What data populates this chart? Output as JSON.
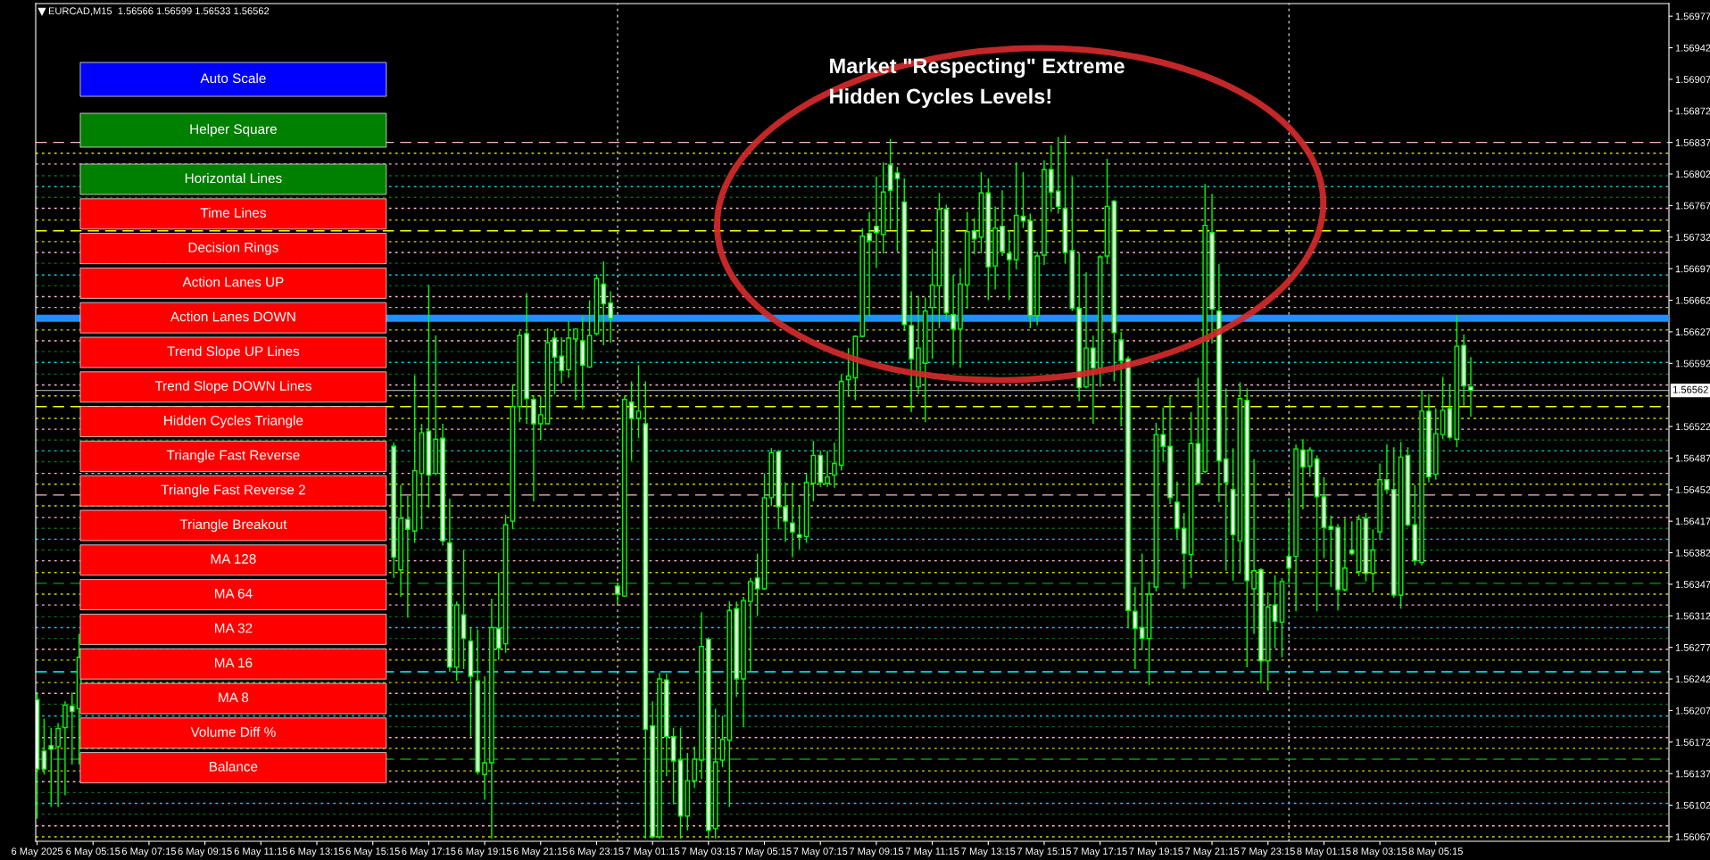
{
  "chart_data": [
    {
      "type": "candlestick",
      "title": "EURCAD,M15  1.56566 1.56599 1.56533 1.56562",
      "annotations": [
        "Market \"Respecting\" Extreme",
        "Hidden Cycles Levels!"
      ],
      "color": "#00ff00",
      "x": [
        "2025-05-06T03:15",
        "2025-05-06T03:30",
        "2025-05-06T03:45",
        "2025-05-06T04:00",
        "2025-05-06T04:15",
        "2025-05-06T04:30",
        "2025-05-06T04:45",
        "2025-05-06T16:00",
        "2025-05-06T16:15",
        "2025-05-06T16:30",
        "2025-05-06T16:45",
        "2025-05-06T17:00",
        "2025-05-06T17:15",
        "2025-05-06T17:30",
        "2025-05-06T17:45",
        "2025-05-06T18:00",
        "2025-05-06T18:15",
        "2025-05-06T18:30",
        "2025-05-06T18:45",
        "2025-05-06T19:00",
        "2025-05-06T19:15",
        "2025-05-06T19:30",
        "2025-05-06T19:45",
        "2025-05-06T20:00",
        "2025-05-06T20:15",
        "2025-05-06T20:30",
        "2025-05-06T20:45",
        "2025-05-06T21:00",
        "2025-05-06T21:15",
        "2025-05-06T21:30",
        "2025-05-06T21:45",
        "2025-05-06T22:00",
        "2025-05-06T22:15",
        "2025-05-06T22:30",
        "2025-05-06T22:45",
        "2025-05-06T23:00",
        "2025-05-06T23:15",
        "2025-05-06T23:30",
        "2025-05-06T23:45",
        "2025-05-07T00:00",
        "2025-05-07T00:15",
        "2025-05-07T00:30",
        "2025-05-07T00:45",
        "2025-05-07T01:00",
        "2025-05-07T01:15",
        "2025-05-07T01:30",
        "2025-05-07T01:45",
        "2025-05-07T02:00",
        "2025-05-07T02:15",
        "2025-05-07T02:30",
        "2025-05-07T02:45",
        "2025-05-07T03:00",
        "2025-05-07T03:15",
        "2025-05-07T03:30",
        "2025-05-07T03:45",
        "2025-05-07T04:00",
        "2025-05-07T04:15",
        "2025-05-07T04:30",
        "2025-05-07T04:45",
        "2025-05-07T05:00",
        "2025-05-07T05:15",
        "2025-05-07T05:30",
        "2025-05-07T05:45",
        "2025-05-07T06:00",
        "2025-05-07T06:15",
        "2025-05-07T06:30",
        "2025-05-07T06:45",
        "2025-05-07T07:00",
        "2025-05-07T07:15",
        "2025-05-07T07:30",
        "2025-05-07T07:45",
        "2025-05-07T08:00",
        "2025-05-07T08:15",
        "2025-05-07T08:30",
        "2025-05-07T08:45",
        "2025-05-07T09:00",
        "2025-05-07T09:15",
        "2025-05-07T09:30",
        "2025-05-07T09:45",
        "2025-05-07T10:00",
        "2025-05-07T10:15",
        "2025-05-07T10:30",
        "2025-05-07T10:45",
        "2025-05-07T11:00",
        "2025-05-07T11:15",
        "2025-05-07T11:30",
        "2025-05-07T11:45",
        "2025-05-07T12:00",
        "2025-05-07T12:15",
        "2025-05-07T12:30",
        "2025-05-07T12:45",
        "2025-05-07T13:00",
        "2025-05-07T13:15",
        "2025-05-07T13:30",
        "2025-05-07T13:45",
        "2025-05-07T14:00",
        "2025-05-07T14:15",
        "2025-05-07T14:30",
        "2025-05-07T14:45",
        "2025-05-07T15:00",
        "2025-05-07T15:15",
        "2025-05-07T15:30",
        "2025-05-07T15:45",
        "2025-05-07T16:00",
        "2025-05-07T16:15",
        "2025-05-07T16:30",
        "2025-05-07T16:45",
        "2025-05-07T17:00",
        "2025-05-07T17:15",
        "2025-05-07T17:30",
        "2025-05-07T17:45",
        "2025-05-07T18:00",
        "2025-05-07T18:15",
        "2025-05-07T18:30",
        "2025-05-07T18:45",
        "2025-05-07T19:00",
        "2025-05-07T19:15",
        "2025-05-07T19:30",
        "2025-05-07T19:45",
        "2025-05-07T20:00",
        "2025-05-07T20:15",
        "2025-05-07T20:30",
        "2025-05-07T20:45",
        "2025-05-07T21:00",
        "2025-05-07T21:15",
        "2025-05-07T21:30",
        "2025-05-07T21:45",
        "2025-05-07T22:00",
        "2025-05-07T22:15",
        "2025-05-07T22:30",
        "2025-05-07T22:45",
        "2025-05-07T23:00",
        "2025-05-07T23:15",
        "2025-05-07T23:30",
        "2025-05-07T23:45",
        "2025-05-08T00:00",
        "2025-05-08T00:15",
        "2025-05-08T00:30",
        "2025-05-08T00:45",
        "2025-05-08T01:00",
        "2025-05-08T01:15",
        "2025-05-08T01:30",
        "2025-05-08T01:45",
        "2025-05-08T02:00",
        "2025-05-08T02:15",
        "2025-05-08T02:30",
        "2025-05-08T02:45",
        "2025-05-08T03:00",
        "2025-05-08T03:15",
        "2025-05-08T03:30",
        "2025-05-08T03:45",
        "2025-05-08T04:00",
        "2025-05-08T04:15",
        "2025-05-08T04:30",
        "2025-05-08T04:45",
        "2025-05-08T05:00",
        "2025-05-08T05:15",
        "2025-05-08T05:30",
        "2025-05-08T05:45",
        "2025-05-08T06:00",
        "2025-05-08T06:15",
        "2025-05-08T06:30"
      ],
      "ohlc": [
        [
          1.56219,
          1.56227,
          1.56087,
          1.56142
        ],
        [
          1.56162,
          1.56198,
          1.56136,
          1.56142
        ],
        [
          1.56168,
          1.56188,
          1.561,
          1.56164
        ],
        [
          1.56167,
          1.56193,
          1.561,
          1.56187
        ],
        [
          1.56188,
          1.56217,
          1.56113,
          1.56213
        ],
        [
          1.56212,
          1.56227,
          1.56147,
          1.56206
        ],
        [
          1.56209,
          1.56292,
          1.56147,
          1.56266
        ],
        [
          1.565,
          1.56504,
          1.56354,
          1.56377
        ],
        [
          1.56363,
          1.56457,
          1.56333,
          1.5642
        ],
        [
          1.56419,
          1.56445,
          1.5631,
          1.56408
        ],
        [
          1.56406,
          1.56579,
          1.56393,
          1.56473
        ],
        [
          1.5647,
          1.56525,
          1.56408,
          1.56515
        ],
        [
          1.56517,
          1.56679,
          1.56432,
          1.56468
        ],
        [
          1.5647,
          1.56623,
          1.56468,
          1.56508
        ],
        [
          1.56509,
          1.56525,
          1.5639,
          1.56395
        ],
        [
          1.56393,
          1.56442,
          1.5625,
          1.56255
        ],
        [
          1.56255,
          1.56328,
          1.5624,
          1.56324
        ],
        [
          1.56313,
          1.56385,
          1.56253,
          1.56287
        ],
        [
          1.56284,
          1.56299,
          1.56178,
          1.56245
        ],
        [
          1.5624,
          1.56297,
          1.56136,
          1.56139
        ],
        [
          1.56136,
          1.56245,
          1.56108,
          1.56149
        ],
        [
          1.56149,
          1.56331,
          1.56065,
          1.56299
        ],
        [
          1.56298,
          1.5636,
          1.56263,
          1.56276
        ],
        [
          1.56281,
          1.56424,
          1.56271,
          1.56413
        ],
        [
          1.56417,
          1.56569,
          1.56408,
          1.56544
        ],
        [
          1.56544,
          1.56628,
          1.56527,
          1.56623
        ],
        [
          1.56625,
          1.5667,
          1.56525,
          1.56553
        ],
        [
          1.56552,
          1.56556,
          1.56439,
          1.56525
        ],
        [
          1.56525,
          1.56556,
          1.56507,
          1.56535
        ],
        [
          1.56525,
          1.56631,
          1.56524,
          1.56615
        ],
        [
          1.5662,
          1.56628,
          1.56558,
          1.56599
        ],
        [
          1.566,
          1.56621,
          1.5657,
          1.56584
        ],
        [
          1.56585,
          1.56639,
          1.56576,
          1.5662
        ],
        [
          1.56619,
          1.56631,
          1.56551,
          1.5663
        ],
        [
          1.56617,
          1.56644,
          1.56541,
          1.5659
        ],
        [
          1.56588,
          1.56662,
          1.56587,
          1.56623
        ],
        [
          1.56625,
          1.56691,
          1.56623,
          1.56686
        ],
        [
          1.5668,
          1.56705,
          1.56612,
          1.56658
        ],
        [
          1.56659,
          1.56672,
          1.56615,
          1.56642
        ],
        [
          1.56345,
          1.56349,
          1.56325,
          1.56336
        ],
        [
          1.56334,
          1.56556,
          1.56333,
          1.56552
        ],
        [
          1.56549,
          1.56572,
          1.56484,
          1.56531
        ],
        [
          1.56531,
          1.5659,
          1.56509,
          1.56539
        ],
        [
          1.56525,
          1.56572,
          1.56065,
          1.56186
        ],
        [
          1.5619,
          1.56217,
          1.56065,
          1.56067
        ],
        [
          1.56067,
          1.56249,
          1.56065,
          1.56242
        ],
        [
          1.56241,
          1.56248,
          1.56134,
          1.56178
        ],
        [
          1.56178,
          1.56188,
          1.56103,
          1.56151
        ],
        [
          1.56152,
          1.56188,
          1.56065,
          1.5609
        ],
        [
          1.5609,
          1.5616,
          1.56074,
          1.56129
        ],
        [
          1.56129,
          1.56167,
          1.56121,
          1.56153
        ],
        [
          1.56152,
          1.56316,
          1.56131,
          1.56278
        ],
        [
          1.56286,
          1.56288,
          1.56065,
          1.56074
        ],
        [
          1.56076,
          1.56209,
          1.56065,
          1.5615
        ],
        [
          1.56152,
          1.56201,
          1.56144,
          1.56175
        ],
        [
          1.56174,
          1.56328,
          1.561,
          1.56318
        ],
        [
          1.5632,
          1.56328,
          1.56222,
          1.56242
        ],
        [
          1.56242,
          1.56333,
          1.56189,
          1.56329
        ],
        [
          1.56328,
          1.56354,
          1.5625,
          1.5635
        ],
        [
          1.56354,
          1.56381,
          1.56312,
          1.56342
        ],
        [
          1.56342,
          1.5647,
          1.56341,
          1.56443
        ],
        [
          1.56443,
          1.56498,
          1.56434,
          1.56493
        ],
        [
          1.56494,
          1.56496,
          1.56408,
          1.56433
        ],
        [
          1.56433,
          1.5646,
          1.56394,
          1.56417
        ],
        [
          1.56415,
          1.5646,
          1.56377,
          1.56405
        ],
        [
          1.56402,
          1.56434,
          1.56386,
          1.56399
        ],
        [
          1.564,
          1.5647,
          1.56393,
          1.5646
        ],
        [
          1.56459,
          1.56506,
          1.56439,
          1.5649
        ],
        [
          1.5649,
          1.56495,
          1.56455,
          1.5646
        ],
        [
          1.56459,
          1.56495,
          1.56455,
          1.56466
        ],
        [
          1.56468,
          1.56504,
          1.56454,
          1.56481
        ],
        [
          1.56479,
          1.5658,
          1.56473,
          1.56572
        ],
        [
          1.56574,
          1.56609,
          1.56556,
          1.56578
        ],
        [
          1.56576,
          1.56623,
          1.56551,
          1.56622
        ],
        [
          1.56622,
          1.56742,
          1.56621,
          1.56733
        ],
        [
          1.56736,
          1.5676,
          1.56644,
          1.56728
        ],
        [
          1.56744,
          1.56799,
          1.56698,
          1.56737
        ],
        [
          1.56735,
          1.56815,
          1.56714,
          1.56782
        ],
        [
          1.56812,
          1.56841,
          1.5674,
          1.56784
        ],
        [
          1.56803,
          1.5681,
          1.56716,
          1.56797
        ],
        [
          1.56771,
          1.56797,
          1.56628,
          1.56635
        ],
        [
          1.56634,
          1.56672,
          1.56538,
          1.56597
        ],
        [
          1.56566,
          1.56667,
          1.56558,
          1.56609
        ],
        [
          1.56592,
          1.56665,
          1.56527,
          1.5665
        ],
        [
          1.56654,
          1.56719,
          1.56597,
          1.56679
        ],
        [
          1.56678,
          1.56781,
          1.56631,
          1.56763
        ],
        [
          1.56763,
          1.56768,
          1.56641,
          1.56648
        ],
        [
          1.56646,
          1.5669,
          1.5659,
          1.5663
        ],
        [
          1.5663,
          1.56698,
          1.56587,
          1.5668
        ],
        [
          1.56679,
          1.5676,
          1.56653,
          1.56738
        ],
        [
          1.56739,
          1.56753,
          1.56713,
          1.5673
        ],
        [
          1.56732,
          1.56804,
          1.56714,
          1.56781
        ],
        [
          1.56781,
          1.56797,
          1.56662,
          1.56699
        ],
        [
          1.567,
          1.56766,
          1.56674,
          1.56742
        ],
        [
          1.56744,
          1.56784,
          1.56711,
          1.56716
        ],
        [
          1.56714,
          1.5674,
          1.56662,
          1.56707
        ],
        [
          1.56707,
          1.56815,
          1.56696,
          1.56756
        ],
        [
          1.56755,
          1.56804,
          1.56742,
          1.5675
        ],
        [
          1.5675,
          1.56758,
          1.56631,
          1.56645
        ],
        [
          1.56645,
          1.56716,
          1.56634,
          1.56711
        ],
        [
          1.56712,
          1.56817,
          1.56701,
          1.56807
        ],
        [
          1.56807,
          1.56834,
          1.5676,
          1.56782
        ],
        [
          1.56783,
          1.56843,
          1.56758,
          1.56766
        ],
        [
          1.56764,
          1.56845,
          1.56703,
          1.56715
        ],
        [
          1.56717,
          1.56799,
          1.5665,
          1.56653
        ],
        [
          1.56653,
          1.56714,
          1.5655,
          1.56565
        ],
        [
          1.56566,
          1.56693,
          1.56564,
          1.56609
        ],
        [
          1.56609,
          1.56623,
          1.56525,
          1.56587
        ],
        [
          1.56587,
          1.56712,
          1.56566,
          1.5671
        ],
        [
          1.56711,
          1.56819,
          1.56702,
          1.56766
        ],
        [
          1.56772,
          1.56773,
          1.56572,
          1.56626
        ],
        [
          1.56618,
          1.56627,
          1.56522,
          1.56595
        ],
        [
          1.56597,
          1.566,
          1.56299,
          1.56318
        ],
        [
          1.56317,
          1.56344,
          1.56253,
          1.56298
        ],
        [
          1.56299,
          1.56381,
          1.56274,
          1.56287
        ],
        [
          1.56287,
          1.5635,
          1.56235,
          1.56336
        ],
        [
          1.56344,
          1.56526,
          1.56339,
          1.56513
        ],
        [
          1.56513,
          1.56543,
          1.56483,
          1.565
        ],
        [
          1.565,
          1.56556,
          1.56436,
          1.56443
        ],
        [
          1.56438,
          1.56461,
          1.56398,
          1.56409
        ],
        [
          1.56409,
          1.56426,
          1.56342,
          1.56381
        ],
        [
          1.5638,
          1.56538,
          1.56354,
          1.56503
        ],
        [
          1.56503,
          1.56576,
          1.56457,
          1.56459
        ],
        [
          1.56472,
          1.56791,
          1.5647,
          1.56745
        ],
        [
          1.56737,
          1.5678,
          1.56614,
          1.56652
        ],
        [
          1.5665,
          1.56702,
          1.56438,
          1.56484
        ],
        [
          1.56486,
          1.56564,
          1.56362,
          1.5646
        ],
        [
          1.56452,
          1.56498,
          1.56351,
          1.56402
        ],
        [
          1.56395,
          1.56571,
          1.56359,
          1.56553
        ],
        [
          1.56551,
          1.56564,
          1.56255,
          1.56351
        ],
        [
          1.56342,
          1.56486,
          1.56292,
          1.56362
        ],
        [
          1.56363,
          1.56365,
          1.56237,
          1.56262
        ],
        [
          1.56262,
          1.56338,
          1.56229,
          1.56322
        ],
        [
          1.56324,
          1.56357,
          1.56276,
          1.56306
        ],
        [
          1.56305,
          1.56354,
          1.56266,
          1.5635
        ],
        [
          1.56378,
          1.56442,
          1.56349,
          1.56365
        ],
        [
          1.56378,
          1.56502,
          1.56317,
          1.56497
        ],
        [
          1.56496,
          1.56508,
          1.5643,
          1.56477
        ],
        [
          1.56478,
          1.56499,
          1.56466,
          1.56496
        ],
        [
          1.56486,
          1.5649,
          1.56317,
          1.56444
        ],
        [
          1.56444,
          1.56466,
          1.56376,
          1.5641
        ],
        [
          1.56411,
          1.56423,
          1.56344,
          1.56408
        ],
        [
          1.5641,
          1.56414,
          1.56318,
          1.56341
        ],
        [
          1.56341,
          1.5642,
          1.56339,
          1.56365
        ],
        [
          1.56385,
          1.56417,
          1.56379,
          1.56381
        ],
        [
          1.56361,
          1.56424,
          1.56356,
          1.56419
        ],
        [
          1.5642,
          1.56426,
          1.5635,
          1.56359
        ],
        [
          1.56359,
          1.56408,
          1.56338,
          1.56385
        ],
        [
          1.56405,
          1.56481,
          1.56396,
          1.56463
        ],
        [
          1.56463,
          1.56502,
          1.56447,
          1.56452
        ],
        [
          1.56452,
          1.56499,
          1.56332,
          1.56335
        ],
        [
          1.56335,
          1.56505,
          1.5632,
          1.56488
        ],
        [
          1.5649,
          1.56499,
          1.56411,
          1.56413
        ],
        [
          1.56413,
          1.56457,
          1.56368,
          1.56373
        ],
        [
          1.56371,
          1.56562,
          1.56368,
          1.56539
        ],
        [
          1.56539,
          1.56558,
          1.5646,
          1.56466
        ],
        [
          1.56469,
          1.56542,
          1.56463,
          1.56514
        ],
        [
          1.56513,
          1.56577,
          1.56508,
          1.5654
        ],
        [
          1.56542,
          1.56569,
          1.56508,
          1.5651
        ],
        [
          1.56508,
          1.56645,
          1.56499,
          1.56611
        ],
        [
          1.56612,
          1.56624,
          1.56545,
          1.56567
        ],
        [
          1.56566,
          1.56599,
          1.56533,
          1.56562
        ]
      ],
      "xlim": [
        "2025-05-06T03:12",
        "2025-05-08T13:35"
      ],
      "xticks": [
        {
          "value": "2025-05-06T03:15",
          "label": "6 May 2025"
        },
        {
          "value": "2025-05-06T05:15",
          "label": "6 May 05:15"
        },
        {
          "value": "2025-05-06T07:15",
          "label": "6 May 07:15"
        },
        {
          "value": "2025-05-06T09:15",
          "label": "6 May 09:15"
        },
        {
          "value": "2025-05-06T11:15",
          "label": "6 May 11:15"
        },
        {
          "value": "2025-05-06T13:15",
          "label": "6 May 13:15"
        },
        {
          "value": "2025-05-06T15:15",
          "label": "6 May 15:15"
        },
        {
          "value": "2025-05-06T17:15",
          "label": "6 May 17:15"
        },
        {
          "value": "2025-05-06T19:15",
          "label": "6 May 19:15"
        },
        {
          "value": "2025-05-06T21:15",
          "label": "6 May 21:15"
        },
        {
          "value": "2025-05-06T23:15",
          "label": "6 May 23:15"
        },
        {
          "value": "2025-05-07T01:15",
          "label": "7 May 01:15"
        },
        {
          "value": "2025-05-07T03:15",
          "label": "7 May 03:15"
        },
        {
          "value": "2025-05-07T05:15",
          "label": "7 May 05:15"
        },
        {
          "value": "2025-05-07T07:15",
          "label": "7 May 07:15"
        },
        {
          "value": "2025-05-07T09:15",
          "label": "7 May 09:15"
        },
        {
          "value": "2025-05-07T11:15",
          "label": "7 May 11:15"
        },
        {
          "value": "2025-05-07T13:15",
          "label": "7 May 13:15"
        },
        {
          "value": "2025-05-07T15:15",
          "label": "7 May 15:15"
        },
        {
          "value": "2025-05-07T17:15",
          "label": "7 May 17:15"
        },
        {
          "value": "2025-05-07T19:15",
          "label": "7 May 19:15"
        },
        {
          "value": "2025-05-07T21:15",
          "label": "7 May 21:15"
        },
        {
          "value": "2025-05-07T23:15",
          "label": "7 May 23:15"
        },
        {
          "value": "2025-05-08T01:15",
          "label": "8 May 01:15"
        },
        {
          "value": "2025-05-08T03:15",
          "label": "8 May 03:15"
        },
        {
          "value": "2025-05-08T05:15",
          "label": "8 May 05:15"
        }
      ],
      "ylim": [
        1.56062,
        1.56991
      ],
      "yticks": [
        1.56067,
        1.56102,
        1.56137,
        1.56172,
        1.56207,
        1.56242,
        1.56277,
        1.56312,
        1.56347,
        1.56382,
        1.56417,
        1.56452,
        1.56487,
        1.56522,
        1.56592,
        1.56627,
        1.56662,
        1.56697,
        1.56732,
        1.56767,
        1.56802,
        1.56837,
        1.56872,
        1.56907,
        1.56942,
        1.56977
      ],
      "bands": [
        {
          "axis": "y",
          "from": 1.56638,
          "to": 1.56646,
          "color": "#1e90ff"
        }
      ],
      "ref_lines": [
        {
          "axis": "x",
          "value": "2025-05-07T00:00",
          "color": "#c8c8c8",
          "line_style": "dotted"
        },
        {
          "axis": "x",
          "value": "2025-05-08T00:00",
          "color": "#c8c8c8",
          "line_style": "dotted"
        },
        {
          "axis": "y",
          "value": 1.56562,
          "label": "1.56562",
          "color": "#9a9a9a",
          "line_style": "solid"
        },
        {
          "axis": "y",
          "value": 1.56837,
          "color": "#ffb6c1",
          "line_style": "dashed"
        },
        {
          "axis": "y",
          "value": 1.56825,
          "color": "#d8d800",
          "line_style": "dotted"
        },
        {
          "axis": "y",
          "value": 1.56813,
          "color": "#ffb6c1",
          "line_style": "dotted"
        },
        {
          "axis": "y",
          "value": 1.568,
          "color": "#007a00",
          "line_style": "dotted"
        },
        {
          "axis": "y",
          "value": 1.56788,
          "color": "#00d0e0",
          "line_style": "dotted"
        },
        {
          "axis": "y",
          "value": 1.56776,
          "color": "#007a00",
          "line_style": "dotted"
        },
        {
          "axis": "y",
          "value": 1.56764,
          "color": "#ffb6c1",
          "line_style": "dotted"
        },
        {
          "axis": "y",
          "value": 1.56751,
          "color": "#d8d800",
          "line_style": "dotted"
        },
        {
          "axis": "y",
          "value": 1.56739,
          "color": "#ffff00",
          "line_style": "dashed"
        },
        {
          "axis": "y",
          "value": 1.56727,
          "color": "#d8d800",
          "line_style": "dotted"
        },
        {
          "axis": "y",
          "value": 1.56715,
          "color": "#ffb6c1",
          "line_style": "dotted"
        },
        {
          "axis": "y",
          "value": 1.56703,
          "color": "#007a00",
          "line_style": "dotted"
        },
        {
          "axis": "y",
          "value": 1.5669,
          "color": "#00d0e0",
          "line_style": "dotted"
        },
        {
          "axis": "y",
          "value": 1.56678,
          "color": "#007a00",
          "line_style": "dotted"
        },
        {
          "axis": "y",
          "value": 1.56666,
          "color": "#ffb6c1",
          "line_style": "dotted"
        },
        {
          "axis": "y",
          "value": 1.56654,
          "color": "#d8d800",
          "line_style": "dotted"
        },
        {
          "axis": "y",
          "value": 1.56629,
          "color": "#d8d800",
          "line_style": "dotted"
        },
        {
          "axis": "y",
          "value": 1.56617,
          "color": "#ffb6c1",
          "line_style": "dotted"
        },
        {
          "axis": "y",
          "value": 1.56605,
          "color": "#007a00",
          "line_style": "dotted"
        },
        {
          "axis": "y",
          "value": 1.56593,
          "color": "#00d0e0",
          "line_style": "dotted"
        },
        {
          "axis": "y",
          "value": 1.5658,
          "color": "#007a00",
          "line_style": "dotted"
        },
        {
          "axis": "y",
          "value": 1.56568,
          "color": "#ffb6c1",
          "line_style": "dotted"
        },
        {
          "axis": "y",
          "value": 1.56556,
          "color": "#d8d800",
          "line_style": "dotted"
        },
        {
          "axis": "y",
          "value": 1.56544,
          "color": "#ffff00",
          "line_style": "dashed"
        },
        {
          "axis": "y",
          "value": 1.56531,
          "color": "#d8d800",
          "line_style": "dotted"
        },
        {
          "axis": "y",
          "value": 1.56519,
          "color": "#ffb6c1",
          "line_style": "dotted"
        },
        {
          "axis": "y",
          "value": 1.56507,
          "color": "#007a00",
          "line_style": "dotted"
        },
        {
          "axis": "y",
          "value": 1.56495,
          "color": "#00d0e0",
          "line_style": "dotted"
        },
        {
          "axis": "y",
          "value": 1.56483,
          "color": "#007a00",
          "line_style": "dotted"
        },
        {
          "axis": "y",
          "value": 1.5647,
          "color": "#ffb6c1",
          "line_style": "dotted"
        },
        {
          "axis": "y",
          "value": 1.56458,
          "color": "#d8d800",
          "line_style": "dotted"
        },
        {
          "axis": "y",
          "value": 1.56446,
          "color": "#ffb6c1",
          "line_style": "dashed"
        },
        {
          "axis": "y",
          "value": 1.56434,
          "color": "#d8d800",
          "line_style": "dotted"
        },
        {
          "axis": "y",
          "value": 1.56421,
          "color": "#ffb6c1",
          "line_style": "dotted"
        },
        {
          "axis": "y",
          "value": 1.56409,
          "color": "#007a00",
          "line_style": "dotted"
        },
        {
          "axis": "y",
          "value": 1.56397,
          "color": "#00d0e0",
          "line_style": "dotted"
        },
        {
          "axis": "y",
          "value": 1.56385,
          "color": "#007a00",
          "line_style": "dotted"
        },
        {
          "axis": "y",
          "value": 1.56373,
          "color": "#ffb6c1",
          "line_style": "dotted"
        },
        {
          "axis": "y",
          "value": 1.5636,
          "color": "#d8d800",
          "line_style": "dotted"
        },
        {
          "axis": "y",
          "value": 1.56348,
          "color": "#00a000",
          "line_style": "dashed"
        },
        {
          "axis": "y",
          "value": 1.56336,
          "color": "#d8d800",
          "line_style": "dotted"
        },
        {
          "axis": "y",
          "value": 1.56324,
          "color": "#ffb6c1",
          "line_style": "dotted"
        },
        {
          "axis": "y",
          "value": 1.56311,
          "color": "#007a00",
          "line_style": "dotted"
        },
        {
          "axis": "y",
          "value": 1.56299,
          "color": "#00d0e0",
          "line_style": "dotted"
        },
        {
          "axis": "y",
          "value": 1.56287,
          "color": "#007a00",
          "line_style": "dotted"
        },
        {
          "axis": "y",
          "value": 1.56275,
          "color": "#ffb6c1",
          "line_style": "dotted"
        },
        {
          "axis": "y",
          "value": 1.56263,
          "color": "#d8d800",
          "line_style": "dotted"
        },
        {
          "axis": "y",
          "value": 1.5625,
          "color": "#00ffff",
          "line_style": "dashed"
        },
        {
          "axis": "y",
          "value": 1.56238,
          "color": "#d8d800",
          "line_style": "dotted"
        },
        {
          "axis": "y",
          "value": 1.56226,
          "color": "#ffb6c1",
          "line_style": "dotted"
        },
        {
          "axis": "y",
          "value": 1.56214,
          "color": "#007a00",
          "line_style": "dotted"
        },
        {
          "axis": "y",
          "value": 1.56201,
          "color": "#00d0e0",
          "line_style": "dotted"
        },
        {
          "axis": "y",
          "value": 1.56189,
          "color": "#007a00",
          "line_style": "dotted"
        },
        {
          "axis": "y",
          "value": 1.56177,
          "color": "#ffb6c1",
          "line_style": "dotted"
        },
        {
          "axis": "y",
          "value": 1.56165,
          "color": "#d8d800",
          "line_style": "dotted"
        },
        {
          "axis": "y",
          "value": 1.56153,
          "color": "#00a000",
          "line_style": "dashed"
        },
        {
          "axis": "y",
          "value": 1.5614,
          "color": "#d8d800",
          "line_style": "dotted"
        },
        {
          "axis": "y",
          "value": 1.56128,
          "color": "#ffb6c1",
          "line_style": "dotted"
        },
        {
          "axis": "y",
          "value": 1.56116,
          "color": "#007a00",
          "line_style": "dotted"
        },
        {
          "axis": "y",
          "value": 1.56104,
          "color": "#00d0e0",
          "line_style": "dotted"
        },
        {
          "axis": "y",
          "value": 1.56092,
          "color": "#007a00",
          "line_style": "dotted"
        },
        {
          "axis": "y",
          "value": 1.56079,
          "color": "#ffb6c1",
          "line_style": "dotted"
        },
        {
          "axis": "y",
          "value": 1.56067,
          "color": "#d8d800",
          "line_style": "dotted"
        }
      ]
    },
    {
      "type": "other",
      "categories": [
        "Auto Scale",
        "Helper Square",
        "Horizontal Lines",
        "Time Lines",
        "Decision Rings",
        "Action Lanes UP",
        "Action Lanes DOWN",
        "Trend Slope UP Lines",
        "Trend Slope DOWN Lines",
        "Hidden Cycles Triangle",
        "Triangle Fast Reverse",
        "Triangle Fast Reverse 2",
        "Triangle Breakout",
        "MA 128",
        "MA 64",
        "MA 32",
        "MA 16",
        "MA 8",
        "Volume Diff %",
        "Balance"
      ],
      "colors": [
        "#0000ff",
        "#008000",
        "#008000",
        "#ff0000",
        "#ff0000",
        "#ff0000",
        "#ff0000",
        "#ff0000",
        "#ff0000",
        "#ff0000",
        "#ff0000",
        "#ff0000",
        "#ff0000",
        "#ff0000",
        "#ff0000",
        "#ff0000",
        "#ff0000",
        "#ff0000",
        "#ff0000",
        "#ff0000"
      ]
    }
  ]
}
